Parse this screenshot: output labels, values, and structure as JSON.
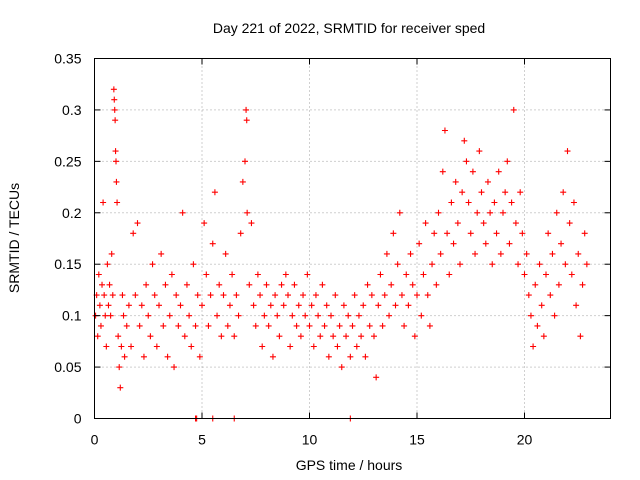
{
  "chart_data": {
    "type": "scatter",
    "title": "Day 221 of 2022, SRMTID for receiver sped",
    "xlabel": "GPS time / hours",
    "ylabel": "SRMTID / TECUs",
    "xlim": [
      0,
      24
    ],
    "ylim": [
      0,
      0.35
    ],
    "xticks": [
      0,
      5,
      10,
      15,
      20
    ],
    "xtick_labels": [
      "0",
      "5",
      "10",
      "15",
      "20"
    ],
    "yticks": [
      0,
      0.05,
      0.1,
      0.15,
      0.2,
      0.25,
      0.3,
      0.35
    ],
    "ytick_labels": [
      "0",
      "0.05",
      "0.1",
      "0.15",
      "0.2",
      "0.25",
      "0.3",
      "0.35"
    ],
    "grid": true,
    "marker": "+",
    "marker_color": "#ff0000",
    "series": [
      {
        "name": "SRMTID",
        "points": [
          [
            0.05,
            0.1
          ],
          [
            0.1,
            0.12
          ],
          [
            0.15,
            0.08
          ],
          [
            0.2,
            0.14
          ],
          [
            0.25,
            0.11
          ],
          [
            0.3,
            0.09
          ],
          [
            0.35,
            0.13
          ],
          [
            0.4,
            0.21
          ],
          [
            0.45,
            0.12
          ],
          [
            0.5,
            0.1
          ],
          [
            0.55,
            0.07
          ],
          [
            0.6,
            0.15
          ],
          [
            0.65,
            0.11
          ],
          [
            0.7,
            0.13
          ],
          [
            0.75,
            0.1
          ],
          [
            0.8,
            0.16
          ],
          [
            0.85,
            0.12
          ],
          [
            0.9,
            0.32
          ],
          [
            0.92,
            0.31
          ],
          [
            0.94,
            0.3
          ],
          [
            0.96,
            0.29
          ],
          [
            0.98,
            0.26
          ],
          [
            1.0,
            0.25
          ],
          [
            1.02,
            0.23
          ],
          [
            1.05,
            0.21
          ],
          [
            1.1,
            0.08
          ],
          [
            1.15,
            0.05
          ],
          [
            1.2,
            0.03
          ],
          [
            1.25,
            0.07
          ],
          [
            1.3,
            0.12
          ],
          [
            1.35,
            0.1
          ],
          [
            1.4,
            0.06
          ],
          [
            1.5,
            0.09
          ],
          [
            1.6,
            0.11
          ],
          [
            1.7,
            0.07
          ],
          [
            1.8,
            0.18
          ],
          [
            1.9,
            0.12
          ],
          [
            2.0,
            0.19
          ],
          [
            2.1,
            0.09
          ],
          [
            2.2,
            0.11
          ],
          [
            2.3,
            0.06
          ],
          [
            2.4,
            0.13
          ],
          [
            2.5,
            0.1
          ],
          [
            2.6,
            0.08
          ],
          [
            2.7,
            0.15
          ],
          [
            2.8,
            0.12
          ],
          [
            2.9,
            0.07
          ],
          [
            3.0,
            0.11
          ],
          [
            3.1,
            0.16
          ],
          [
            3.2,
            0.09
          ],
          [
            3.3,
            0.13
          ],
          [
            3.4,
            0.06
          ],
          [
            3.5,
            0.1
          ],
          [
            3.6,
            0.14
          ],
          [
            3.7,
            0.05
          ],
          [
            3.8,
            0.12
          ],
          [
            3.9,
            0.09
          ],
          [
            4.0,
            0.11
          ],
          [
            4.1,
            0.2
          ],
          [
            4.2,
            0.08
          ],
          [
            4.3,
            0.13
          ],
          [
            4.4,
            0.1
          ],
          [
            4.5,
            0.07
          ],
          [
            4.6,
            0.15
          ],
          [
            4.7,
            0.09
          ],
          [
            4.8,
            0.12
          ],
          [
            4.9,
            0.06
          ],
          [
            5.0,
            0.11
          ],
          [
            5.1,
            0.19
          ],
          [
            5.2,
            0.14
          ],
          [
            5.3,
            0.09
          ],
          [
            5.4,
            0.12
          ],
          [
            5.5,
            0.17
          ],
          [
            5.6,
            0.22
          ],
          [
            5.7,
            0.1
          ],
          [
            5.8,
            0.13
          ],
          [
            5.9,
            0.08
          ],
          [
            6.0,
            0.12
          ],
          [
            6.1,
            0.16
          ],
          [
            6.2,
            0.09
          ],
          [
            6.3,
            0.11
          ],
          [
            6.4,
            0.14
          ],
          [
            6.5,
            0.08
          ],
          [
            6.6,
            0.12
          ],
          [
            6.7,
            0.1
          ],
          [
            6.8,
            0.18
          ],
          [
            6.9,
            0.23
          ],
          [
            7.0,
            0.25
          ],
          [
            7.05,
            0.3
          ],
          [
            7.08,
            0.29
          ],
          [
            7.1,
            0.2
          ],
          [
            7.2,
            0.13
          ],
          [
            7.3,
            0.19
          ],
          [
            7.4,
            0.11
          ],
          [
            7.5,
            0.09
          ],
          [
            7.6,
            0.14
          ],
          [
            7.7,
            0.12
          ],
          [
            7.8,
            0.07
          ],
          [
            7.9,
            0.1
          ],
          [
            8.0,
            0.13
          ],
          [
            8.1,
            0.09
          ],
          [
            8.2,
            0.11
          ],
          [
            8.3,
            0.06
          ],
          [
            8.4,
            0.12
          ],
          [
            8.5,
            0.1
          ],
          [
            8.6,
            0.08
          ],
          [
            8.7,
            0.13
          ],
          [
            8.8,
            0.11
          ],
          [
            8.9,
            0.14
          ],
          [
            9.0,
            0.12
          ],
          [
            9.1,
            0.07
          ],
          [
            9.2,
            0.1
          ],
          [
            9.3,
            0.13
          ],
          [
            9.4,
            0.09
          ],
          [
            9.5,
            0.11
          ],
          [
            9.6,
            0.08
          ],
          [
            9.7,
            0.12
          ],
          [
            9.8,
            0.1
          ],
          [
            9.9,
            0.14
          ],
          [
            10.0,
            0.09
          ],
          [
            10.1,
            0.11
          ],
          [
            10.2,
            0.07
          ],
          [
            10.3,
            0.12
          ],
          [
            10.4,
            0.1
          ],
          [
            10.5,
            0.08
          ],
          [
            10.6,
            0.13
          ],
          [
            10.7,
            0.09
          ],
          [
            10.8,
            0.11
          ],
          [
            10.9,
            0.06
          ],
          [
            11.0,
            0.1
          ],
          [
            11.1,
            0.08
          ],
          [
            11.2,
            0.12
          ],
          [
            11.3,
            0.07
          ],
          [
            11.4,
            0.09
          ],
          [
            11.5,
            0.05
          ],
          [
            11.6,
            0.11
          ],
          [
            11.7,
            0.08
          ],
          [
            11.8,
            0.1
          ],
          [
            11.9,
            0.06
          ],
          [
            12.0,
            0.09
          ],
          [
            12.1,
            0.12
          ],
          [
            12.2,
            0.07
          ],
          [
            12.3,
            0.1
          ],
          [
            12.4,
            0.08
          ],
          [
            12.5,
            0.11
          ],
          [
            12.6,
            0.06
          ],
          [
            12.7,
            0.13
          ],
          [
            12.8,
            0.09
          ],
          [
            12.9,
            0.12
          ],
          [
            13.0,
            0.08
          ],
          [
            13.1,
            0.04
          ],
          [
            13.2,
            0.11
          ],
          [
            13.3,
            0.14
          ],
          [
            13.4,
            0.09
          ],
          [
            13.5,
            0.12
          ],
          [
            13.6,
            0.16
          ],
          [
            13.7,
            0.1
          ],
          [
            13.8,
            0.13
          ],
          [
            13.9,
            0.18
          ],
          [
            14.0,
            0.11
          ],
          [
            14.1,
            0.15
          ],
          [
            14.2,
            0.2
          ],
          [
            14.3,
            0.12
          ],
          [
            14.4,
            0.09
          ],
          [
            14.5,
            0.14
          ],
          [
            14.6,
            0.11
          ],
          [
            14.7,
            0.16
          ],
          [
            14.8,
            0.13
          ],
          [
            14.9,
            0.08
          ],
          [
            15.0,
            0.12
          ],
          [
            15.1,
            0.17
          ],
          [
            15.2,
            0.1
          ],
          [
            15.3,
            0.14
          ],
          [
            15.4,
            0.19
          ],
          [
            15.5,
            0.12
          ],
          [
            15.6,
            0.09
          ],
          [
            15.7,
            0.15
          ],
          [
            15.8,
            0.18
          ],
          [
            15.9,
            0.13
          ],
          [
            16.0,
            0.2
          ],
          [
            16.1,
            0.16
          ],
          [
            16.2,
            0.24
          ],
          [
            16.3,
            0.28
          ],
          [
            16.4,
            0.18
          ],
          [
            16.5,
            0.14
          ],
          [
            16.6,
            0.21
          ],
          [
            16.7,
            0.17
          ],
          [
            16.8,
            0.23
          ],
          [
            16.9,
            0.19
          ],
          [
            17.0,
            0.15
          ],
          [
            17.1,
            0.22
          ],
          [
            17.2,
            0.27
          ],
          [
            17.3,
            0.25
          ],
          [
            17.4,
            0.21
          ],
          [
            17.5,
            0.18
          ],
          [
            17.6,
            0.24
          ],
          [
            17.7,
            0.16
          ],
          [
            17.8,
            0.2
          ],
          [
            17.9,
            0.26
          ],
          [
            18.0,
            0.22
          ],
          [
            18.1,
            0.19
          ],
          [
            18.2,
            0.17
          ],
          [
            18.3,
            0.23
          ],
          [
            18.4,
            0.2
          ],
          [
            18.5,
            0.15
          ],
          [
            18.6,
            0.21
          ],
          [
            18.7,
            0.18
          ],
          [
            18.8,
            0.24
          ],
          [
            18.9,
            0.16
          ],
          [
            19.0,
            0.2
          ],
          [
            19.1,
            0.22
          ],
          [
            19.2,
            0.25
          ],
          [
            19.3,
            0.17
          ],
          [
            19.4,
            0.21
          ],
          [
            19.5,
            0.3
          ],
          [
            19.6,
            0.19
          ],
          [
            19.7,
            0.15
          ],
          [
            19.8,
            0.22
          ],
          [
            19.9,
            0.18
          ],
          [
            20.0,
            0.14
          ],
          [
            20.1,
            0.16
          ],
          [
            20.2,
            0.12
          ],
          [
            20.3,
            0.1
          ],
          [
            20.4,
            0.07
          ],
          [
            20.5,
            0.13
          ],
          [
            20.6,
            0.09
          ],
          [
            20.7,
            0.15
          ],
          [
            20.8,
            0.11
          ],
          [
            20.9,
            0.08
          ],
          [
            21.0,
            0.14
          ],
          [
            21.1,
            0.18
          ],
          [
            21.2,
            0.12
          ],
          [
            21.3,
            0.16
          ],
          [
            21.4,
            0.1
          ],
          [
            21.5,
            0.2
          ],
          [
            21.6,
            0.13
          ],
          [
            21.7,
            0.17
          ],
          [
            21.8,
            0.22
          ],
          [
            21.9,
            0.15
          ],
          [
            22.0,
            0.26
          ],
          [
            22.1,
            0.19
          ],
          [
            22.2,
            0.14
          ],
          [
            22.3,
            0.21
          ],
          [
            22.4,
            0.11
          ],
          [
            22.5,
            0.16
          ],
          [
            22.6,
            0.08
          ],
          [
            22.7,
            0.13
          ],
          [
            22.8,
            0.18
          ],
          [
            22.9,
            0.15
          ]
        ]
      }
    ],
    "zero_points": [
      4.7,
      4.75,
      5.5,
      6.5,
      11.9
    ]
  }
}
